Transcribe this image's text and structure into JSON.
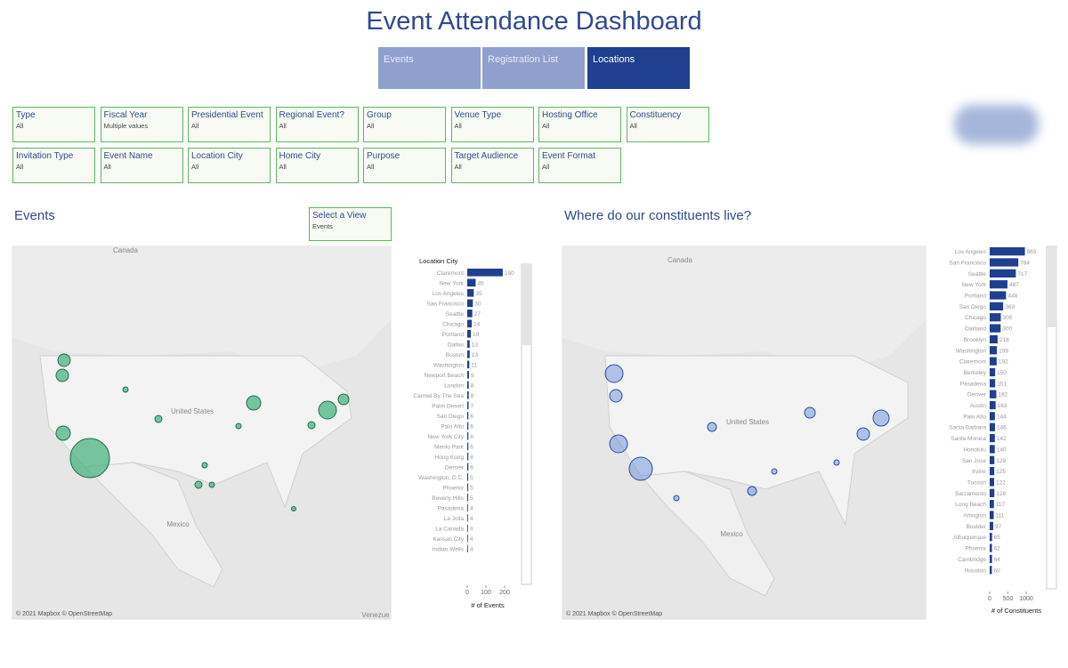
{
  "title": "Event Attendance Dashboard",
  "tabs": [
    "Events",
    "Registration List",
    "Locations"
  ],
  "filters": [
    {
      "label": "Type",
      "value": "All"
    },
    {
      "label": "Fiscal Year",
      "value": "Multiple values"
    },
    {
      "label": "Presidential Event",
      "value": "All"
    },
    {
      "label": "Regional Event?",
      "value": "All"
    },
    {
      "label": "Group",
      "value": "All"
    },
    {
      "label": "Venue Type",
      "value": "All"
    },
    {
      "label": "Hosting Office",
      "value": "All"
    },
    {
      "label": "Constituency",
      "value": "All"
    },
    {
      "label": "Invitation Type",
      "value": "All"
    },
    {
      "label": "Event Name",
      "value": "All"
    },
    {
      "label": "Location City",
      "value": "All"
    },
    {
      "label": "Home City",
      "value": "All"
    },
    {
      "label": "Purpose",
      "value": "All"
    },
    {
      "label": "Target Audience",
      "value": "All"
    },
    {
      "label": "Event Format",
      "value": "All"
    }
  ],
  "events_panel": {
    "heading": "Events",
    "view_selector": {
      "label": "Select a View",
      "value": "Events"
    },
    "map_labels": [
      "Canada",
      "United States",
      "Mexico",
      "Venezue"
    ],
    "attribution": "© 2021 Mapbox © OpenStreetMap"
  },
  "constituents_panel": {
    "heading": "Where do our constituents live?",
    "map_labels": [
      "Canada",
      "United States",
      "Mexico"
    ],
    "attribution": "© 2021 Mapbox © OpenStreetMap"
  },
  "chart_data": [
    {
      "type": "hbar",
      "y_label": "Location City",
      "x_label": "# of Events",
      "color": "#1f3f8f",
      "categories": [
        "Claremont",
        "New York",
        "Los Angeles",
        "San Francisco",
        "Seattle",
        "Chicago",
        "Portland",
        "Dallas",
        "Boston",
        "Washington",
        "Newport Beach",
        "London",
        "Carmel By The Sea",
        "Palm Desert",
        "San Diego",
        "Palo Alto",
        "New York City",
        "Menlo Park",
        "Hong Kong",
        "Denver",
        "Washington, D.C.",
        "Phoenix",
        "Beverly Hills",
        "Pasadena",
        "La Jolla",
        "La Canada",
        "Kansas City",
        "Indian Wells"
      ],
      "values": [
        190,
        45,
        35,
        30,
        27,
        24,
        19,
        13,
        13,
        11,
        9,
        8,
        8,
        7,
        6,
        6,
        6,
        6,
        6,
        6,
        5,
        5,
        5,
        4,
        4,
        4,
        4,
        4
      ],
      "xlim": [
        0,
        200
      ],
      "xticks": [
        0,
        100,
        200
      ]
    },
    {
      "type": "hbar",
      "x_label": "# of Constituents",
      "color": "#1f3f8f",
      "categories": [
        "Los Angeles",
        "San Francisco",
        "Seattle",
        "New York",
        "Portland",
        "San Diego",
        "Chicago",
        "Oakland",
        "Brooklyn",
        "Washington",
        "Claremont",
        "Berkeley",
        "Pasadena",
        "Denver",
        "Austin",
        "Palo Alto",
        "Santa Barbara",
        "Santa Monica",
        "Honolulu",
        "San Jose",
        "Irvine",
        "Tucson",
        "Sacramento",
        "Long Beach",
        "Arlington",
        "Boulder",
        "Albuquerque",
        "Phoenix",
        "Cambridge",
        "Houston"
      ],
      "values": [
        965,
        784,
        717,
        487,
        448,
        369,
        305,
        300,
        218,
        199,
        192,
        150,
        151,
        182,
        163,
        144,
        146,
        142,
        140,
        128,
        125,
        122,
        128,
        117,
        111,
        97,
        65,
        62,
        64,
        60
      ],
      "xlim": [
        0,
        1000
      ],
      "xticks": [
        0,
        500,
        1000
      ]
    }
  ]
}
